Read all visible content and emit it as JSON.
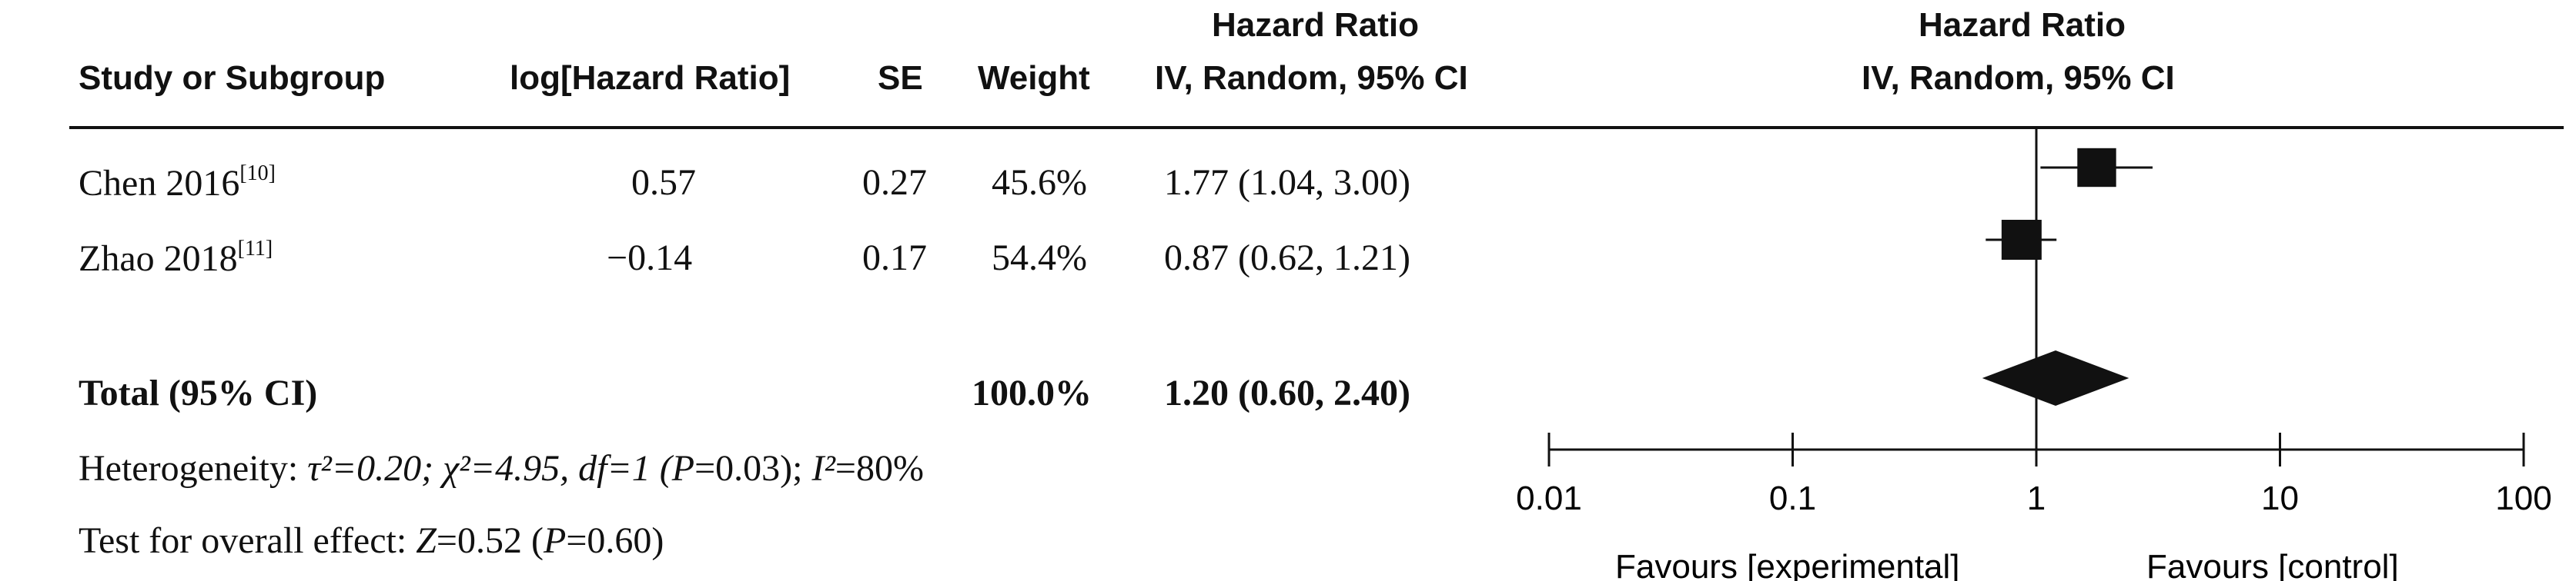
{
  "columns": {
    "study": "Study or Subgroup",
    "log_hr": "log[Hazard Ratio]",
    "se": "SE",
    "weight": "Weight",
    "hr_title": "Hazard Ratio",
    "hr_method": "IV, Random, 95% CI",
    "plot_title": "Hazard Ratio",
    "plot_method": "IV, Random, 95% CI"
  },
  "rows": [
    {
      "study": "Chen 2016",
      "ref": "[10]",
      "log_hr": "0.57",
      "se": "0.27",
      "weight": "45.6%",
      "ci": "1.77 (1.04, 3.00)"
    },
    {
      "study": "Zhao 2018",
      "ref": "[11]",
      "log_hr": "−0.14",
      "se": "0.17",
      "weight": "54.4%",
      "ci": "0.87 (0.62, 1.21)"
    }
  ],
  "total": {
    "label": "Total (95% CI)",
    "weight": "100.0%",
    "ci": "1.20 (0.60, 2.40)"
  },
  "heterogeneity": {
    "prefix": "Heterogeneity: ",
    "tau2": "τ²=0.20; ",
    "chi2": "χ²=4.95, df=1 (",
    "p_label": "P",
    "p_val": "=0.03); ",
    "i2_label": "I²",
    "i2_val": "=80%"
  },
  "overall": {
    "prefix": "Test for overall effect: ",
    "z_label": "Z",
    "z_val": "=0.52 (",
    "p_label": "P",
    "p_val": "=0.60)"
  },
  "chart_data": {
    "type": "forest",
    "scale": "log",
    "xlim": [
      0.01,
      100
    ],
    "ticks": [
      0.01,
      0.1,
      1,
      10,
      100
    ],
    "tick_labels": [
      "0.01",
      "0.1",
      "1",
      "10",
      "100"
    ],
    "favours_left": "Favours [experimental]",
    "favours_right": "Favours [control]",
    "studies": [
      {
        "name": "Chen 2016",
        "hr": 1.77,
        "lower": 1.04,
        "upper": 3.0,
        "weight": 45.6
      },
      {
        "name": "Zhao 2018",
        "hr": 0.87,
        "lower": 0.62,
        "upper": 1.21,
        "weight": 54.4
      }
    ],
    "pooled": {
      "hr": 1.2,
      "lower": 0.6,
      "upper": 2.4
    }
  }
}
